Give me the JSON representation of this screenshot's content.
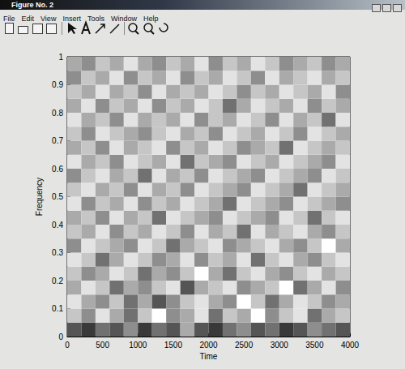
{
  "window": {
    "title": "Figure No. 2",
    "menu": [
      "File",
      "Edit",
      "View",
      "Insert",
      "Tools",
      "Window",
      "Help"
    ]
  },
  "chart_data": {
    "type": "heatmap",
    "xlabel": "Time",
    "ylabel": "Frequency",
    "xlim": [
      0,
      4000
    ],
    "ylim": [
      0,
      1
    ],
    "xticks": [
      0,
      500,
      1000,
      1500,
      2000,
      2500,
      3000,
      3500,
      4000
    ],
    "yticks": [
      0,
      0.1,
      0.2,
      0.3,
      0.4,
      0.5,
      0.6,
      0.7,
      0.8,
      0.9,
      1
    ],
    "x_bins": [
      0,
      200,
      400,
      600,
      800,
      1000,
      1200,
      1400,
      1600,
      1800,
      2000,
      2200,
      2400,
      2600,
      2800,
      3000,
      3200,
      3400,
      3600,
      3800,
      4000
    ],
    "y_bins": [
      0,
      0.05,
      0.1,
      0.15,
      0.2,
      0.25,
      0.3,
      0.35,
      0.4,
      0.45,
      0.5,
      0.55,
      0.6,
      0.65,
      0.7,
      0.75,
      0.8,
      0.85,
      0.9,
      0.95,
      1
    ],
    "value_range": [
      0,
      9
    ],
    "cells": [
      [
        3,
        2,
        4,
        3,
        5,
        2,
        4,
        3,
        6,
        3,
        2,
        4,
        5,
        3,
        4,
        2,
        3,
        5,
        4,
        3
      ],
      [
        7,
        5,
        8,
        6,
        4,
        7,
        9,
        5,
        6,
        8,
        4,
        7,
        6,
        9,
        5,
        7,
        8,
        4,
        6,
        7
      ],
      [
        8,
        6,
        5,
        7,
        4,
        6,
        3,
        5,
        7,
        8,
        6,
        5,
        9,
        7,
        4,
        6,
        8,
        7,
        5,
        6
      ],
      [
        6,
        8,
        7,
        4,
        6,
        5,
        7,
        8,
        3,
        6,
        7,
        8,
        5,
        6,
        7,
        9,
        4,
        6,
        8,
        5
      ],
      [
        7,
        5,
        6,
        8,
        7,
        4,
        6,
        5,
        7,
        9,
        6,
        4,
        7,
        8,
        6,
        5,
        7,
        8,
        6,
        7
      ],
      [
        8,
        7,
        4,
        6,
        8,
        7,
        5,
        6,
        8,
        5,
        7,
        6,
        8,
        4,
        7,
        8,
        6,
        5,
        7,
        8
      ],
      [
        5,
        8,
        7,
        6,
        5,
        8,
        7,
        4,
        6,
        7,
        8,
        5,
        6,
        7,
        8,
        6,
        5,
        7,
        9,
        6
      ],
      [
        7,
        6,
        8,
        5,
        7,
        6,
        8,
        7,
        5,
        8,
        6,
        7,
        4,
        8,
        6,
        7,
        8,
        6,
        5,
        7
      ],
      [
        6,
        7,
        5,
        8,
        6,
        7,
        4,
        8,
        7,
        6,
        5,
        8,
        7,
        6,
        5,
        8,
        7,
        4,
        7,
        8
      ],
      [
        8,
        5,
        7,
        6,
        8,
        5,
        7,
        6,
        8,
        7,
        6,
        4,
        8,
        7,
        6,
        5,
        8,
        7,
        6,
        5
      ],
      [
        7,
        8,
        6,
        7,
        5,
        8,
        6,
        7,
        5,
        8,
        7,
        6,
        5,
        8,
        7,
        6,
        4,
        8,
        7,
        6
      ],
      [
        5,
        7,
        8,
        6,
        7,
        4,
        8,
        6,
        7,
        5,
        8,
        7,
        6,
        5,
        8,
        7,
        6,
        5,
        8,
        7
      ],
      [
        8,
        6,
        7,
        5,
        8,
        7,
        6,
        8,
        4,
        7,
        6,
        5,
        8,
        7,
        6,
        8,
        7,
        6,
        5,
        8
      ],
      [
        6,
        7,
        5,
        8,
        6,
        7,
        8,
        5,
        7,
        6,
        8,
        7,
        5,
        6,
        7,
        4,
        8,
        7,
        6,
        7
      ],
      [
        7,
        5,
        8,
        7,
        6,
        5,
        7,
        8,
        6,
        7,
        5,
        8,
        7,
        6,
        8,
        7,
        5,
        8,
        7,
        6
      ],
      [
        8,
        6,
        7,
        5,
        8,
        6,
        7,
        6,
        8,
        5,
        7,
        6,
        8,
        7,
        5,
        8,
        6,
        7,
        4,
        8
      ],
      [
        6,
        8,
        5,
        7,
        6,
        8,
        5,
        7,
        6,
        8,
        7,
        4,
        6,
        8,
        7,
        6,
        8,
        5,
        7,
        6
      ],
      [
        7,
        6,
        8,
        6,
        7,
        5,
        8,
        6,
        7,
        6,
        8,
        7,
        5,
        7,
        6,
        8,
        7,
        6,
        8,
        5
      ],
      [
        5,
        7,
        6,
        8,
        5,
        7,
        6,
        8,
        5,
        7,
        6,
        8,
        7,
        5,
        8,
        6,
        7,
        8,
        6,
        7
      ],
      [
        6,
        5,
        7,
        6,
        8,
        6,
        5,
        7,
        6,
        8,
        5,
        7,
        6,
        8,
        7,
        5,
        6,
        7,
        5,
        6
      ]
    ]
  }
}
